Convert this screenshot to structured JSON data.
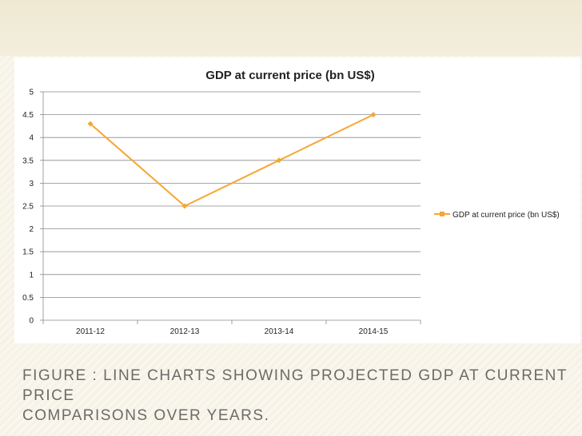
{
  "slide": {
    "caption_line1": "FIGURE   : LINE CHARTS SHOWING PROJECTED GDP AT CURRENT PRICE",
    "caption_line2": "COMPARISONS OVER YEARS."
  },
  "colors": {
    "series": "#f5a733",
    "grid": "#8a8a8a",
    "text": "#222222"
  },
  "chart_data": {
    "type": "line",
    "title": "GDP at current price (bn US$)",
    "categories": [
      "2011-12",
      "2012-13",
      "2013-14",
      "2014-15"
    ],
    "series": [
      {
        "name": "GDP at current price (bn US$)",
        "values": [
          4.3,
          2.5,
          3.5,
          4.5
        ]
      }
    ],
    "ylim": [
      0,
      5
    ],
    "yticks": [
      "0",
      "0.5",
      "1",
      "1.5",
      "2",
      "2.5",
      "3",
      "3.5",
      "4",
      "4.5",
      "5"
    ],
    "xlabel": "",
    "ylabel": "",
    "grid": true,
    "legend": "right"
  }
}
